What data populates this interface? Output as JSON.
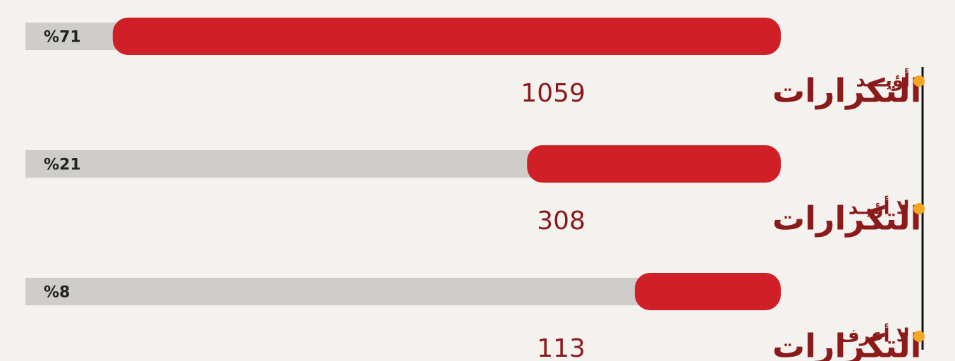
{
  "chart_data": {
    "type": "bar",
    "orientation": "horizontal",
    "categories": [
      "أؤيـــد",
      "لا أؤيـد",
      "لا أعرف"
    ],
    "values": [
      71,
      21,
      8
    ],
    "value_labels": [
      "%71",
      "%21",
      "%8"
    ],
    "count_label": "التكرارات",
    "counts": [
      1059,
      308,
      113
    ],
    "color": "#d01f26",
    "track_color": "#cfcdca",
    "dot_color": "#f5a623"
  }
}
